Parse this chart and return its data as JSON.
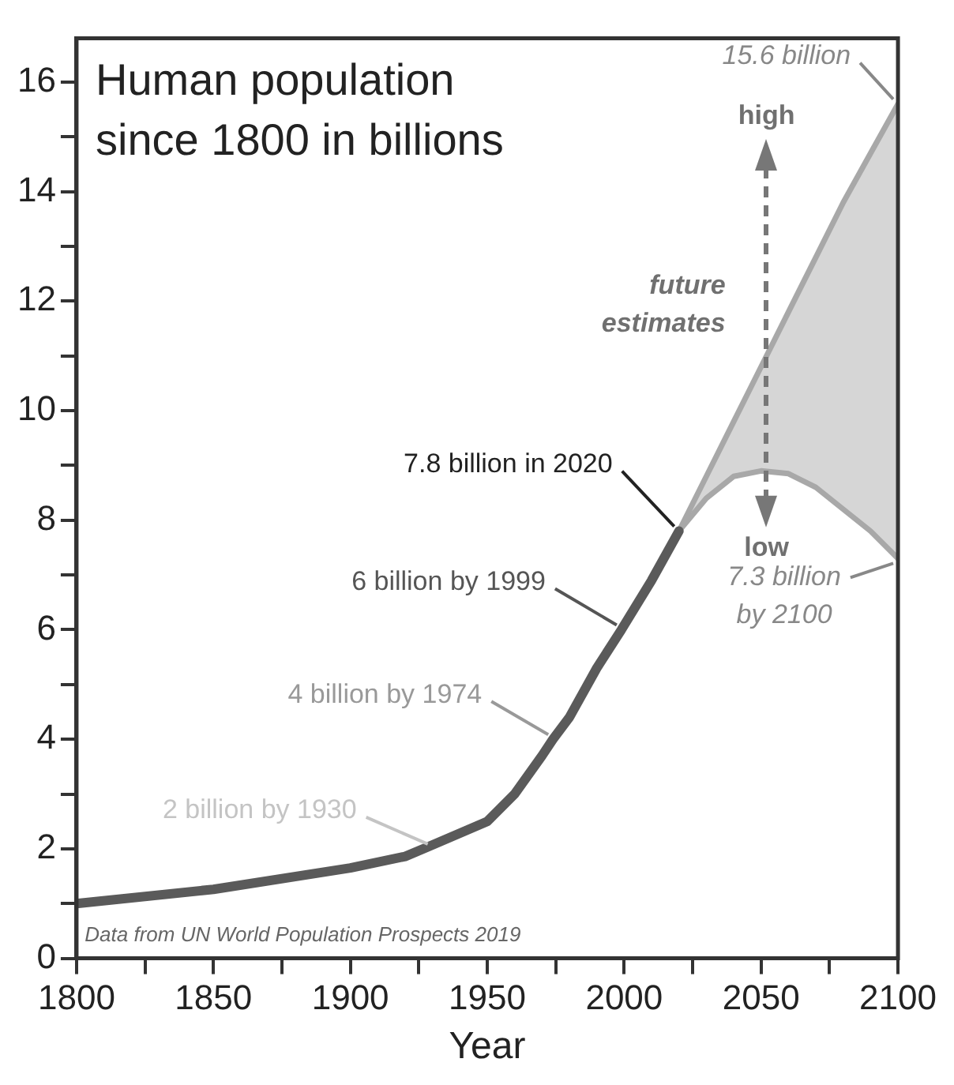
{
  "chart_data": {
    "type": "line",
    "title": "Human population since 1800 in billions",
    "xlabel": "Year",
    "xlim": [
      1800,
      2100
    ],
    "xticks": [
      1800,
      {
        "value": 1825,
        "label": null
      },
      1850,
      {
        "value": 1875,
        "label": null
      },
      1900,
      {
        "value": 1925,
        "label": null
      },
      1950,
      {
        "value": 1975,
        "label": null
      },
      2000,
      {
        "value": 2025,
        "label": null
      },
      2050,
      {
        "value": 2075,
        "label": null
      },
      2100
    ],
    "ylim": [
      0,
      16.8
    ],
    "yticks": [
      0,
      {
        "value": 1,
        "label": null
      },
      2,
      {
        "value": 3,
        "label": null
      },
      4,
      {
        "value": 5,
        "label": null
      },
      6,
      {
        "value": 7,
        "label": null
      },
      8,
      {
        "value": 9,
        "label": null
      },
      10,
      {
        "value": 11,
        "label": null
      },
      12,
      {
        "value": 13,
        "label": null
      },
      14,
      {
        "value": 15,
        "label": null
      },
      16
    ],
    "grid": false,
    "legend": false,
    "marker": "none",
    "line_style": "solid",
    "series": [
      {
        "color": "#5a5a5a",
        "x": [
          1800,
          1850,
          1900,
          1920,
          1930,
          1950,
          1960,
          1970,
          1974,
          1980,
          1990,
          1999,
          2010,
          2020
        ],
        "values": [
          1.0,
          1.26,
          1.65,
          1.86,
          2.07,
          2.5,
          3.0,
          3.7,
          4.0,
          4.4,
          5.3,
          6.0,
          6.9,
          7.8
        ]
      },
      {
        "color": "#a8a8a8",
        "x": [
          2020,
          2030,
          2040,
          2050,
          2060,
          2070,
          2080,
          2090,
          2100
        ],
        "values": [
          7.8,
          8.8,
          9.8,
          10.8,
          11.8,
          12.8,
          13.8,
          14.7,
          15.6
        ],
        "lower": [
          7.8,
          8.4,
          8.8,
          8.9,
          8.85,
          8.6,
          8.2,
          7.8,
          7.3
        ],
        "upper": [
          7.8,
          8.8,
          9.8,
          10.8,
          11.8,
          12.8,
          13.8,
          14.7,
          15.6
        ]
      },
      {
        "color": "#a8a8a8",
        "x": [
          2020,
          2030,
          2040,
          2050,
          2060,
          2070,
          2080,
          2090,
          2100
        ],
        "values": [
          7.8,
          8.4,
          8.8,
          8.9,
          8.85,
          8.6,
          8.2,
          7.8,
          7.3
        ]
      }
    ],
    "annotations": [
      {
        "text": "7.8 billion in 2020",
        "x": 2020,
        "y": 7.8
      },
      {
        "text": "6 billion by 1999",
        "x": 1999,
        "y": 6
      },
      {
        "text": "4 billion by 1974",
        "x": 1974,
        "y": 4
      },
      {
        "text": "2 billion by 1930",
        "x": 1930,
        "y": 2
      },
      {
        "text": "15.6 billion",
        "x": 2100,
        "y": 15.6
      },
      {
        "text": "7.3 billion by 2100",
        "x": 2100,
        "y": 7.3
      },
      "high",
      "low",
      "future estimates",
      "Data from UN World Population Prospects 2019"
    ]
  }
}
